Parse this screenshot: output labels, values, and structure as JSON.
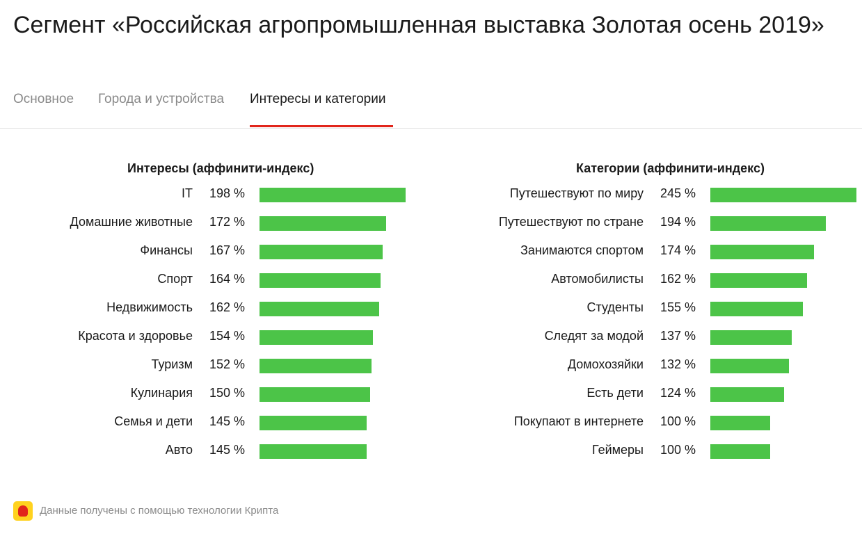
{
  "page": {
    "title": "Сегмент «Российская агропромышленная выставка Золотая осень 2019»"
  },
  "tabs": [
    {
      "label": "Основное",
      "active": false
    },
    {
      "label": "Города и устройства",
      "active": false
    },
    {
      "label": "Интересы и категории",
      "active": true
    }
  ],
  "colors": {
    "bar": "#4cc448",
    "accent": "#e1251b",
    "tab_inactive": "#8a8a8a"
  },
  "chart_data": [
    {
      "type": "bar",
      "orientation": "horizontal",
      "title": "Интересы (аффинити-индекс)",
      "categories": [
        "IT",
        "Домашние животные",
        "Финансы",
        "Спорт",
        "Недвижимость",
        "Красота и здоровье",
        "Туризм",
        "Кулинария",
        "Семья и дети",
        "Авто"
      ],
      "values": [
        198,
        172,
        167,
        164,
        162,
        154,
        152,
        150,
        145,
        145
      ],
      "value_labels": [
        "198 %",
        "172 %",
        "167 %",
        "164 %",
        "162 %",
        "154 %",
        "152 %",
        "150 %",
        "145 %",
        "145 %"
      ],
      "unit": "%",
      "xlim": [
        0,
        198
      ]
    },
    {
      "type": "bar",
      "orientation": "horizontal",
      "title": "Категории (аффинити-индекс)",
      "categories": [
        "Путешествуют по миру",
        "Путешествуют по стране",
        "Занимаются спортом",
        "Автомобилисты",
        "Студенты",
        "Следят за модой",
        "Домохозяйки",
        "Есть дети",
        "Покупают в интернете",
        "Геймеры"
      ],
      "values": [
        245,
        194,
        174,
        162,
        155,
        137,
        132,
        124,
        100,
        100
      ],
      "value_labels": [
        "245 %",
        "194 %",
        "174 %",
        "162 %",
        "155 %",
        "137 %",
        "132 %",
        "124 %",
        "100 %",
        "100 %"
      ],
      "unit": "%",
      "xlim": [
        0,
        245
      ]
    }
  ],
  "footer": {
    "logo_icon": "krypta-logo-icon",
    "text": "Данные получены с помощью технологии Крипта"
  }
}
